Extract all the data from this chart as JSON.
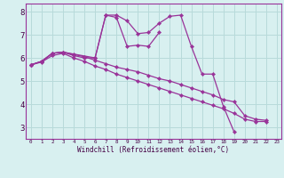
{
  "xlabel": "Windchill (Refroidissement éolien,°C)",
  "bg_color": "#d8f0f0",
  "grid_color": "#b8dada",
  "line_color": "#993399",
  "x_range": [
    -0.5,
    23.4
  ],
  "y_range": [
    2.5,
    8.35
  ],
  "series": [
    {
      "x": [
        0,
        1,
        2,
        3,
        4,
        5,
        6,
        7,
        8,
        9,
        10,
        11,
        12,
        13,
        14,
        15,
        16,
        17,
        18,
        19
      ],
      "y": [
        5.7,
        5.85,
        6.2,
        6.25,
        6.1,
        6.0,
        6.0,
        7.85,
        7.85,
        7.6,
        7.05,
        7.1,
        7.5,
        7.8,
        7.85,
        6.5,
        5.3,
        5.3,
        3.9,
        2.8
      ]
    },
    {
      "x": [
        0,
        1,
        2,
        3,
        6,
        7,
        8,
        9,
        10,
        11,
        12
      ],
      "y": [
        5.7,
        5.85,
        6.2,
        6.25,
        6.0,
        7.85,
        7.75,
        6.5,
        6.55,
        6.5,
        7.1
      ]
    },
    {
      "x": [
        0,
        1,
        2,
        3,
        4,
        5,
        6,
        7,
        8,
        9,
        10,
        11,
        12,
        13,
        14,
        15,
        16,
        17,
        18,
        19,
        20,
        21,
        22
      ],
      "y": [
        5.7,
        5.85,
        6.2,
        6.25,
        6.15,
        6.05,
        5.9,
        5.75,
        5.6,
        5.5,
        5.4,
        5.25,
        5.1,
        5.0,
        4.85,
        4.7,
        4.55,
        4.4,
        4.2,
        4.1,
        3.5,
        3.35,
        3.3
      ]
    },
    {
      "x": [
        0,
        1,
        2,
        3,
        4,
        5,
        6,
        7,
        8,
        9,
        10,
        11,
        12,
        13,
        14,
        15,
        16,
        17,
        18,
        19,
        20,
        21,
        22
      ],
      "y": [
        5.7,
        5.82,
        6.1,
        6.2,
        6.0,
        5.85,
        5.65,
        5.5,
        5.3,
        5.15,
        5.0,
        4.85,
        4.7,
        4.55,
        4.4,
        4.25,
        4.1,
        3.95,
        3.8,
        3.6,
        3.35,
        3.25,
        3.25
      ]
    }
  ],
  "xticks": [
    0,
    1,
    2,
    3,
    4,
    5,
    6,
    7,
    8,
    9,
    10,
    11,
    12,
    13,
    14,
    15,
    16,
    17,
    18,
    19,
    20,
    21,
    22,
    23
  ],
  "yticks": [
    3,
    4,
    5,
    6,
    7,
    8
  ],
  "marker": "D",
  "marker_size": 2.2,
  "line_width": 0.9
}
